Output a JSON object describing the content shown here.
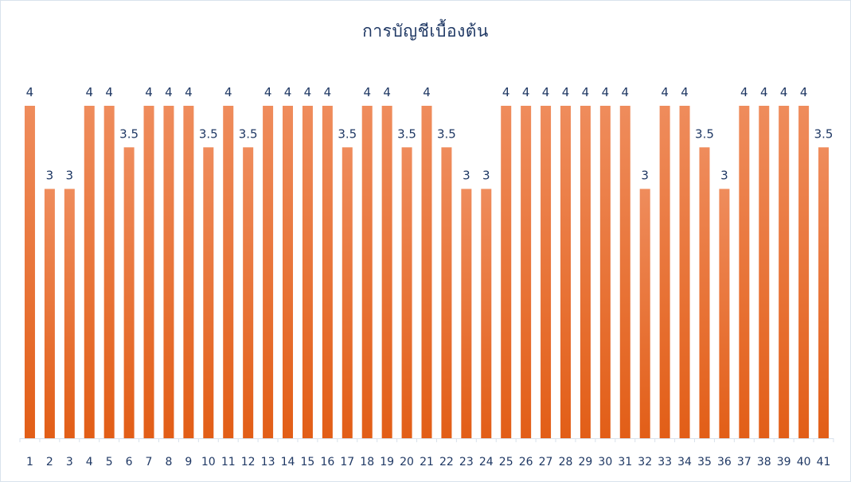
{
  "chart_data": {
    "type": "bar",
    "title": "การบัญชีเบื้องต้น",
    "xlabel": "",
    "ylabel": "",
    "categories": [
      "1",
      "2",
      "3",
      "4",
      "5",
      "6",
      "7",
      "8",
      "9",
      "10",
      "11",
      "12",
      "13",
      "14",
      "15",
      "16",
      "17",
      "18",
      "19",
      "20",
      "21",
      "22",
      "23",
      "24",
      "25",
      "26",
      "27",
      "28",
      "29",
      "30",
      "31",
      "32",
      "33",
      "34",
      "35",
      "36",
      "37",
      "38",
      "39",
      "40",
      "41"
    ],
    "series": [
      {
        "values": [
          4,
          3,
          3,
          4,
          4,
          3.5,
          4,
          4,
          4,
          3.5,
          4,
          3.5,
          4,
          4,
          4,
          4,
          3.5,
          4,
          4,
          3.5,
          4,
          3.5,
          3,
          3,
          4,
          4,
          4,
          4,
          4,
          4,
          4,
          3,
          4,
          4,
          3.5,
          3,
          4,
          4,
          4,
          4,
          3.5
        ]
      }
    ],
    "data_labels": [
      "4",
      "3",
      "3",
      "4",
      "4",
      "3.5",
      "4",
      "4",
      "4",
      "3.5",
      "4",
      "3.5",
      "4",
      "4",
      "4",
      "4",
      "3.5",
      "4",
      "4",
      "3.5",
      "4",
      "3.5",
      "3",
      "3",
      "4",
      "4",
      "4",
      "4",
      "4",
      "4",
      "4",
      "3",
      "4",
      "4",
      "3.5",
      "3",
      "4",
      "4",
      "4",
      "4",
      "3.5"
    ],
    "ylim": [
      0,
      4
    ],
    "grid": false,
    "legend": "none",
    "colors": {
      "bar_top": "#ef8c5c",
      "bar_bottom": "#e25e17",
      "text": "#1f3864",
      "axis": "#d9e2ec"
    }
  }
}
